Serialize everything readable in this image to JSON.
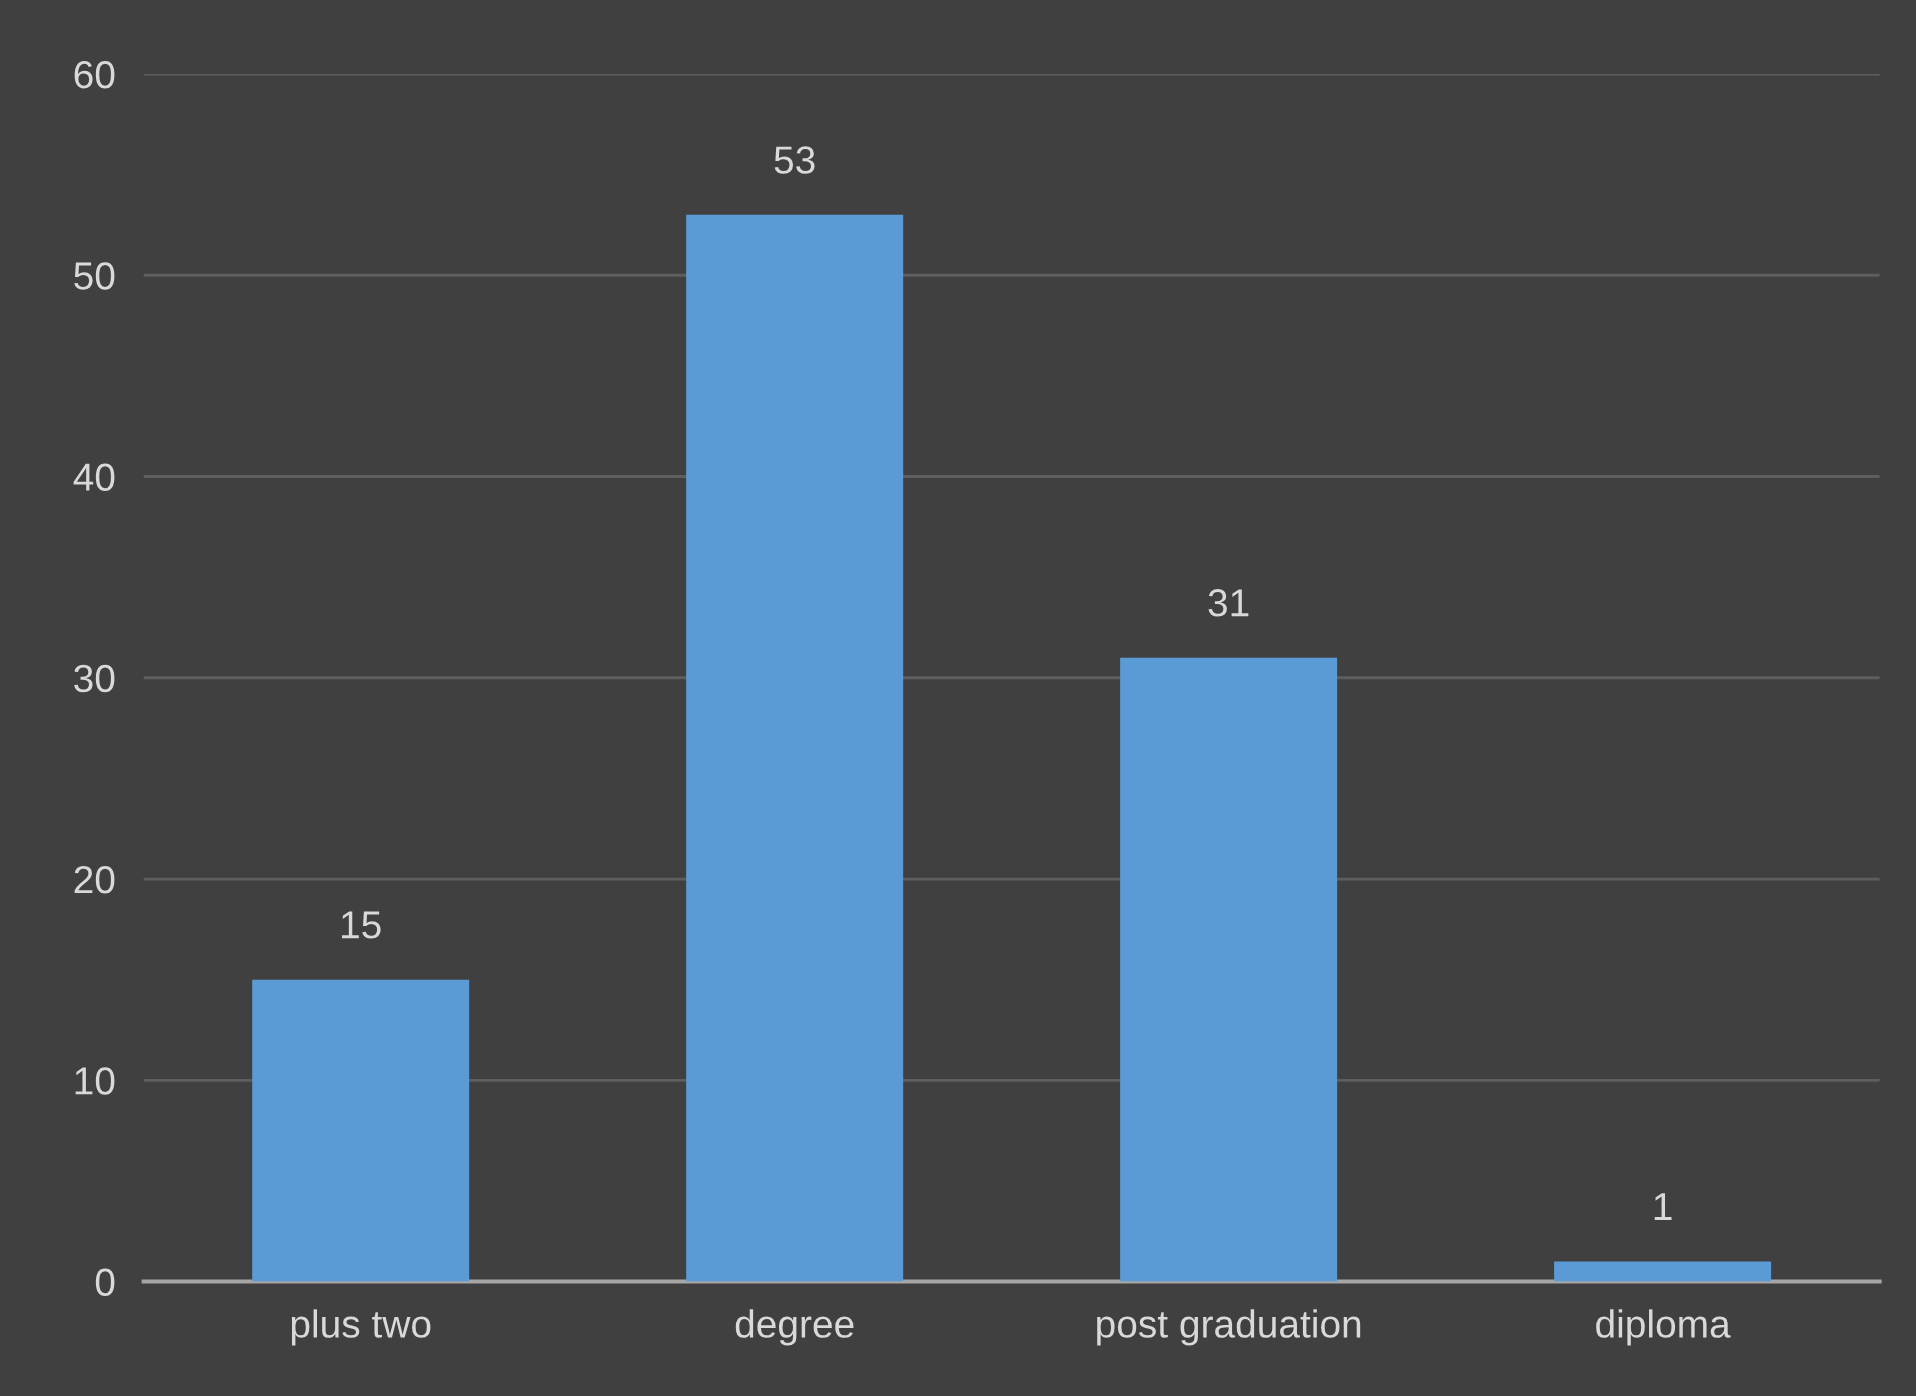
{
  "chart_data": {
    "type": "bar",
    "categories": [
      "plus two",
      "degree",
      "post graduation",
      "diploma"
    ],
    "values": [
      15,
      53,
      31,
      1
    ],
    "color": "#5b9bd5",
    "ylim": [
      0,
      60
    ],
    "yticks": [
      0,
      10,
      20,
      30,
      40,
      50,
      60
    ],
    "grid": "y",
    "data_labels": true
  }
}
